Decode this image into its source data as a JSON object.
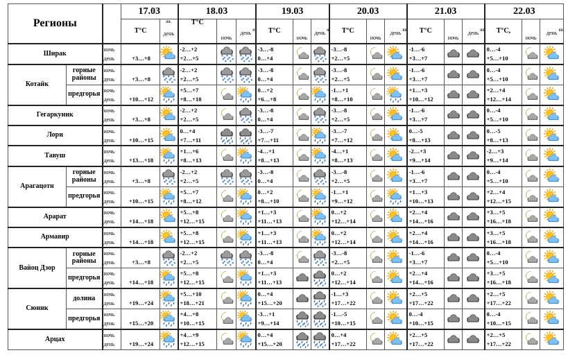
{
  "header": {
    "regions_label": "Регионы",
    "temp_label": "T°C",
    "temp_label_alt": "T°C,",
    "phenomena_label": "яв.",
    "night_label": "ночь",
    "day_label": "день",
    "dates": [
      "17.03",
      "18.03",
      "19.03",
      "20.03",
      "21.03",
      "22.03"
    ]
  },
  "rows": [
    {
      "region": "Ширак",
      "sub": "",
      "days": [
        {
          "t": [
            "",
            "+3…+8"
          ],
          "icons": [
            "sun-cloud"
          ]
        },
        {
          "t": [
            "-2…+2",
            "+2…+5"
          ],
          "icons": [
            "cloud-snow",
            "cloud-snow"
          ]
        },
        {
          "t": [
            "-3…-8",
            "0…+4"
          ],
          "icons": [
            "moon-cloud",
            "cloud-snow"
          ]
        },
        {
          "t": [
            "-3…-8",
            "+2…+5"
          ],
          "icons": [
            "moon-cloud",
            "sun-cloud"
          ]
        },
        {
          "t": [
            "-1…-6",
            "+3…+7"
          ],
          "icons": [
            "cloud",
            "cloud"
          ]
        },
        {
          "t": [
            "0…-4",
            "+5…+10"
          ],
          "icons": [
            "moon-cloud",
            "sun-cloud"
          ]
        }
      ]
    },
    {
      "region": "Котайк",
      "sub": "горные районы",
      "days": [
        {
          "t": [
            "",
            "+3…+8"
          ],
          "icons": [
            "cloud-snow"
          ]
        },
        {
          "t": [
            "-2…+2",
            "+2…+5"
          ],
          "icons": [
            "cloud-snow",
            "cloud-snow"
          ]
        },
        {
          "t": [
            "-3…-8",
            "0…+4"
          ],
          "icons": [
            "moon-cloud",
            "cloud-snow"
          ]
        },
        {
          "t": [
            "-3…-8",
            "+2…+5"
          ],
          "icons": [
            "moon-cloud",
            "sun-cloud"
          ]
        },
        {
          "t": [
            "-1…-6",
            "+3…+7"
          ],
          "icons": [
            "cloud",
            "cloud"
          ]
        },
        {
          "t": [
            "0…-4",
            "+5…+10"
          ],
          "icons": [
            "moon-cloud",
            "sun-cloud"
          ]
        }
      ]
    },
    {
      "region": "",
      "sub": "предгорья",
      "days": [
        {
          "t": [
            "",
            "+10…+12"
          ],
          "icons": [
            "sun-rain"
          ]
        },
        {
          "t": [
            "+5…+7",
            "+8…+10"
          ],
          "icons": [
            "moon-cloud",
            "sun-rain"
          ]
        },
        {
          "t": [
            "0…+2",
            "+6…+8"
          ],
          "icons": [
            "moon-cloud",
            "sun-rain"
          ]
        },
        {
          "t": [
            "-1…+1",
            "+8…+10"
          ],
          "icons": [
            "moon-cloud",
            "sun-rain"
          ]
        },
        {
          "t": [
            "+1…+3",
            "+10…+12"
          ],
          "icons": [
            "cloud",
            "cloud"
          ]
        },
        {
          "t": [
            "+2…+4",
            "+12…+14"
          ],
          "icons": [
            "moon-cloud",
            "sun-cloud"
          ]
        }
      ]
    },
    {
      "region": "Гегаркуник",
      "sub": "",
      "days": [
        {
          "t": [
            "",
            "+3…+8"
          ],
          "icons": [
            "sun-cloud"
          ]
        },
        {
          "t": [
            "-2…+2",
            "+2…+5"
          ],
          "icons": [
            "moon-cloud",
            "cloud-snow"
          ]
        },
        {
          "t": [
            "-3…-8",
            "0…+4"
          ],
          "icons": [
            "moon-cloud",
            "cloud-snow"
          ]
        },
        {
          "t": [
            "-3…-8",
            "+2…+5"
          ],
          "icons": [
            "moon-cloud",
            "sun-cloud"
          ]
        },
        {
          "t": [
            "-1…-6",
            "+3…+7"
          ],
          "icons": [
            "cloud",
            "cloud"
          ]
        },
        {
          "t": [
            "0…-4",
            "+5…+10"
          ],
          "icons": [
            "moon-cloud",
            "sun-cloud"
          ]
        }
      ]
    },
    {
      "region": "Лори",
      "sub": "",
      "days": [
        {
          "t": [
            "",
            "+10…+15"
          ],
          "icons": [
            "sun-cloud"
          ]
        },
        {
          "t": [
            "0…+4",
            "+7…+11"
          ],
          "icons": [
            "cloud-rain",
            "cloud-rain"
          ]
        },
        {
          "t": [
            "-3…-7",
            "+7…+11"
          ],
          "icons": [
            "moon-cloud",
            "sun-rain"
          ]
        },
        {
          "t": [
            "-3…-7",
            "+7…+12"
          ],
          "icons": [
            "moon-cloud",
            "sun-cloud"
          ]
        },
        {
          "t": [
            "0…-5",
            "+8…+13"
          ],
          "icons": [
            "cloud",
            "cloud"
          ]
        },
        {
          "t": [
            "0…-5",
            "+8…+13"
          ],
          "icons": [
            "moon-cloud",
            "sun-cloud"
          ]
        }
      ]
    },
    {
      "region": "Тавуш",
      "sub": "",
      "days": [
        {
          "t": [
            "",
            "+13…+18"
          ],
          "icons": [
            "sun-rain"
          ]
        },
        {
          "t": [
            "+1…+6",
            "+8…+13"
          ],
          "icons": [
            "moon-cloud",
            "sun-rain"
          ]
        },
        {
          "t": [
            "-4…+1",
            "+8…+13"
          ],
          "icons": [
            "moon-cloud",
            "sun-rain"
          ]
        },
        {
          "t": [
            "-4…+1",
            "+8…+13"
          ],
          "icons": [
            "moon-cloud",
            "sun-cloud"
          ]
        },
        {
          "t": [
            "-2…+3",
            "+9…+14"
          ],
          "icons": [
            "cloud",
            "cloud"
          ]
        },
        {
          "t": [
            "-2…+3",
            "+9…+14"
          ],
          "icons": [
            "moon-cloud",
            "sun-cloud"
          ]
        }
      ]
    },
    {
      "region": "Арагацотн",
      "sub": "горные районы",
      "days": [
        {
          "t": [
            "",
            "+3…+8"
          ],
          "icons": [
            "cloud-snow"
          ]
        },
        {
          "t": [
            "-2…+2",
            "+2…+5"
          ],
          "icons": [
            "cloud-snow",
            "cloud-snow"
          ]
        },
        {
          "t": [
            "-3…-8",
            "0…+4"
          ],
          "icons": [
            "moon-cloud",
            "cloud-snow"
          ]
        },
        {
          "t": [
            "-3…-8",
            "+2…+5"
          ],
          "icons": [
            "moon-cloud",
            "sun-cloud"
          ]
        },
        {
          "t": [
            "-1…-6",
            "+3…+7"
          ],
          "icons": [
            "cloud",
            "cloud"
          ]
        },
        {
          "t": [
            "0…-4",
            "+5…+10"
          ],
          "icons": [
            "moon-cloud",
            "sun-cloud"
          ]
        }
      ]
    },
    {
      "region": "",
      "sub": "предгорья",
      "days": [
        {
          "t": [
            "",
            "+10…+15"
          ],
          "icons": [
            "sun-rain"
          ]
        },
        {
          "t": [
            "+5…+7",
            "+8…+12"
          ],
          "icons": [
            "moon-cloud",
            "sun-rain"
          ]
        },
        {
          "t": [
            "0…+2",
            "+8…+10"
          ],
          "icons": [
            "moon-cloud",
            "sun-rain"
          ]
        },
        {
          "t": [
            "-1…+1",
            "+9…+12"
          ],
          "icons": [
            "moon-cloud",
            "sun-rain"
          ]
        },
        {
          "t": [
            "+1…+3",
            "+10…+13"
          ],
          "icons": [
            "cloud",
            "cloud"
          ]
        },
        {
          "t": [
            "+2…+4",
            "+12…+15"
          ],
          "icons": [
            "moon-cloud",
            "sun-cloud"
          ]
        }
      ]
    },
    {
      "region": "Арарат",
      "sub": "",
      "days": [
        {
          "t": [
            "",
            "+14…+18"
          ],
          "icons": [
            "sun-cloud"
          ]
        },
        {
          "t": [
            "+5…+8",
            "+12…+15"
          ],
          "icons": [
            "moon-cloud",
            "sun-rain"
          ]
        },
        {
          "t": [
            "+1…+3",
            "+11…+13"
          ],
          "icons": [
            "moon-cloud",
            "sun-rain"
          ]
        },
        {
          "t": [
            "0…+2",
            "+12…+14"
          ],
          "icons": [
            "moon-cloud",
            "sun-cloud"
          ]
        },
        {
          "t": [
            "+2…+4",
            "+14…+16"
          ],
          "icons": [
            "cloud",
            "cloud"
          ]
        },
        {
          "t": [
            "+3…+5",
            "+16…+18"
          ],
          "icons": [
            "moon-cloud",
            "sun-cloud"
          ]
        }
      ]
    },
    {
      "region": "Армавир",
      "sub": "",
      "days": [
        {
          "t": [
            "",
            "+14…+18"
          ],
          "icons": [
            "sun-cloud"
          ]
        },
        {
          "t": [
            "+5…+8",
            "+12…+15"
          ],
          "icons": [
            "moon-cloud",
            "sun-rain"
          ]
        },
        {
          "t": [
            "+1…+3",
            "+11…+13"
          ],
          "icons": [
            "moon-cloud",
            "sun-rain"
          ]
        },
        {
          "t": [
            "0…+2",
            "+12…+14"
          ],
          "icons": [
            "moon-cloud",
            "sun-cloud"
          ]
        },
        {
          "t": [
            "+2…+4",
            "+14…+16"
          ],
          "icons": [
            "cloud",
            "cloud"
          ]
        },
        {
          "t": [
            "+3…+5",
            "+16…+18"
          ],
          "icons": [
            "moon-cloud",
            "sun-cloud"
          ]
        }
      ]
    },
    {
      "region": "Вайоц Дзор",
      "sub": "горные районы",
      "days": [
        {
          "t": [
            "",
            "+3…+8"
          ],
          "icons": [
            "cloud-snow"
          ]
        },
        {
          "t": [
            "-2…+2",
            "+2…+5"
          ],
          "icons": [
            "cloud-snow",
            "cloud-snow"
          ]
        },
        {
          "t": [
            "-3…-8",
            "0…+4"
          ],
          "icons": [
            "moon-cloud",
            "cloud-snow"
          ]
        },
        {
          "t": [
            "-3…-8",
            "+2…+5"
          ],
          "icons": [
            "moon-cloud",
            "sun-cloud"
          ]
        },
        {
          "t": [
            "-1…-6",
            "+3…+7"
          ],
          "icons": [
            "cloud",
            "cloud"
          ]
        },
        {
          "t": [
            "0…-4",
            "+5…+10"
          ],
          "icons": [
            "moon-cloud",
            "sun-cloud"
          ]
        }
      ]
    },
    {
      "region": "",
      "sub": "предгорья",
      "days": [
        {
          "t": [
            "",
            "+14…+18"
          ],
          "icons": [
            "sun-rain"
          ]
        },
        {
          "t": [
            "+5…+8",
            "+12…+15"
          ],
          "icons": [
            "moon-cloud",
            "sun-rain"
          ]
        },
        {
          "t": [
            "+1…+3",
            "+11…+13"
          ],
          "icons": [
            "cloud",
            "cloud-rain"
          ]
        },
        {
          "t": [
            "0…+2",
            "+12…+14"
          ],
          "icons": [
            "moon-cloud",
            "sun-cloud"
          ]
        },
        {
          "t": [
            "+2…+4",
            "+14…+16"
          ],
          "icons": [
            "cloud",
            "cloud"
          ]
        },
        {
          "t": [
            "+3…+5",
            "+16…+18"
          ],
          "icons": [
            "moon-cloud",
            "sun-cloud"
          ]
        }
      ]
    },
    {
      "region": "Сюник",
      "sub": "долина",
      "days": [
        {
          "t": [
            "",
            "+19…+24"
          ],
          "icons": [
            "sun-rain"
          ]
        },
        {
          "t": [
            "+5…+10",
            "+18…+21"
          ],
          "icons": [
            "moon-cloud",
            "sun-rain"
          ]
        },
        {
          "t": [
            "0…+4",
            "+15…+20"
          ],
          "icons": [
            "cloud",
            "cloud-rain"
          ]
        },
        {
          "t": [
            "-1…+3",
            "+17…+22"
          ],
          "icons": [
            "moon-cloud",
            "sun-cloud"
          ]
        },
        {
          "t": [
            "+2…+5",
            "+17…+22"
          ],
          "icons": [
            "cloud",
            "cloud"
          ]
        },
        {
          "t": [
            "+2…+5",
            "+17…+22"
          ],
          "icons": [
            "moon-cloud",
            "sun-cloud"
          ]
        }
      ]
    },
    {
      "region": "",
      "sub": "предгорья",
      "days": [
        {
          "t": [
            "",
            "+15…+20"
          ],
          "icons": [
            "sun-rain"
          ]
        },
        {
          "t": [
            "+4…+8",
            "+10…+15"
          ],
          "icons": [
            "moon-cloud",
            "sun-rain"
          ]
        },
        {
          "t": [
            "-3…+1",
            "+9…+14"
          ],
          "icons": [
            "cloud-rain",
            "cloud-rain"
          ]
        },
        {
          "t": [
            "-1…-5",
            "+10…+15"
          ],
          "icons": [
            "moon-cloud",
            "sun-cloud"
          ]
        },
        {
          "t": [
            "0…-4",
            "+10…+15"
          ],
          "icons": [
            "cloud",
            "cloud"
          ]
        },
        {
          "t": [
            "0…-4",
            "+10…+15"
          ],
          "icons": [
            "moon-cloud",
            "sun-cloud"
          ]
        }
      ]
    },
    {
      "region": "Арцах",
      "sub": "",
      "days": [
        {
          "t": [
            "",
            "+19…+24"
          ],
          "icons": [
            "sun-rain"
          ]
        },
        {
          "t": [
            "+4…+9",
            "+12…+15"
          ],
          "icons": [
            "moon-cloud",
            "sun-rain"
          ]
        },
        {
          "t": [
            "0…+4",
            "+15…+20"
          ],
          "icons": [
            "cloud-rain",
            "cloud-rain"
          ]
        },
        {
          "t": [
            "0…+4",
            "+17…+22"
          ],
          "icons": [
            "moon-cloud",
            "sun-cloud"
          ]
        },
        {
          "t": [
            "+2…+5",
            "+17…+22"
          ],
          "icons": [
            "cloud",
            "cloud"
          ]
        },
        {
          "t": [
            "+2…+5",
            "+17…+22"
          ],
          "icons": [
            "moon-cloud",
            "sun-cloud"
          ]
        }
      ]
    }
  ]
}
